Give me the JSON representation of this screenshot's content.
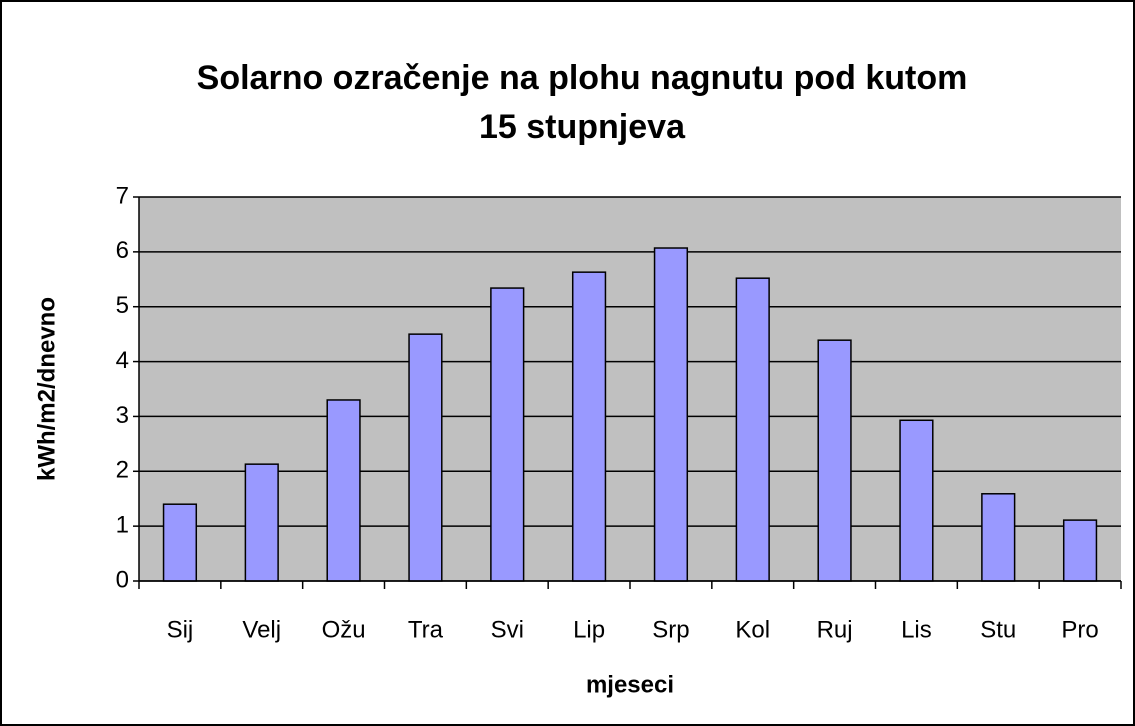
{
  "chart_data": {
    "type": "bar",
    "title": [
      "Solarno ozračenje na plohu nagnutu pod kutom",
      "15 stupnjeva"
    ],
    "x_label": "mjeseci",
    "y_label": "kWh/m2/dnevno",
    "categories": [
      "Sij",
      "Velj",
      "Ožu",
      "Tra",
      "Svi",
      "Lip",
      "Srp",
      "Kol",
      "Ruj",
      "Lis",
      "Stu",
      "Pro"
    ],
    "values": [
      1.4,
      2.13,
      3.3,
      4.5,
      5.34,
      5.63,
      6.07,
      5.52,
      4.39,
      2.93,
      1.59,
      1.11
    ],
    "color": "#9999ff",
    "ylim": [
      0,
      7
    ],
    "yticks": [
      0,
      1,
      2,
      3,
      4,
      5,
      6,
      7
    ],
    "grid": true
  }
}
